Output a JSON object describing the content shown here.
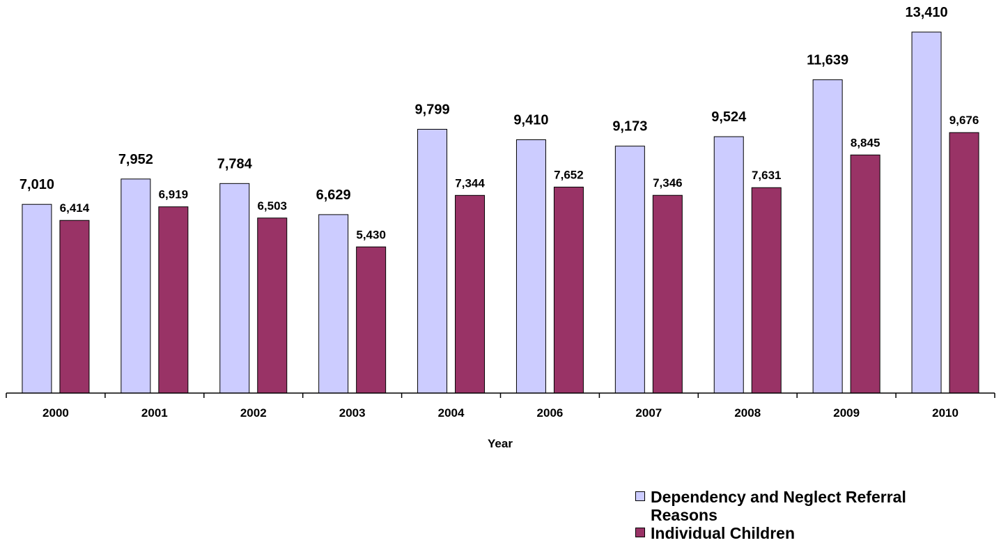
{
  "chart_data": {
    "type": "bar",
    "title": "",
    "xlabel": "Year",
    "ylabel": "",
    "categories": [
      "2000",
      "2001",
      "2002",
      "2003",
      "2004",
      "2006",
      "2007",
      "2008",
      "2009",
      "2010"
    ],
    "ylim": [
      0,
      13410
    ],
    "grid": false,
    "legend_position": "bottom-right",
    "series": [
      {
        "name": "Dependency and Neglect Referral Reasons",
        "color": "#ccccff",
        "values": [
          7010,
          7952,
          7784,
          6629,
          9799,
          9410,
          9173,
          9524,
          11639,
          13410
        ],
        "labels": [
          "7,010",
          "7,952",
          "7,784",
          "6,629",
          "9,799",
          "9,410",
          "9,173",
          "9,524",
          "11,639",
          "13,410"
        ]
      },
      {
        "name": "Individual Children",
        "color": "#993366",
        "values": [
          6414,
          6919,
          6503,
          5430,
          7344,
          7652,
          7346,
          7631,
          8845,
          9676
        ],
        "labels": [
          "6,414",
          "6,919",
          "6,503",
          "5,430",
          "7,344",
          "7,652",
          "7,346",
          "7,631",
          "8,845",
          "9,676"
        ]
      }
    ]
  }
}
